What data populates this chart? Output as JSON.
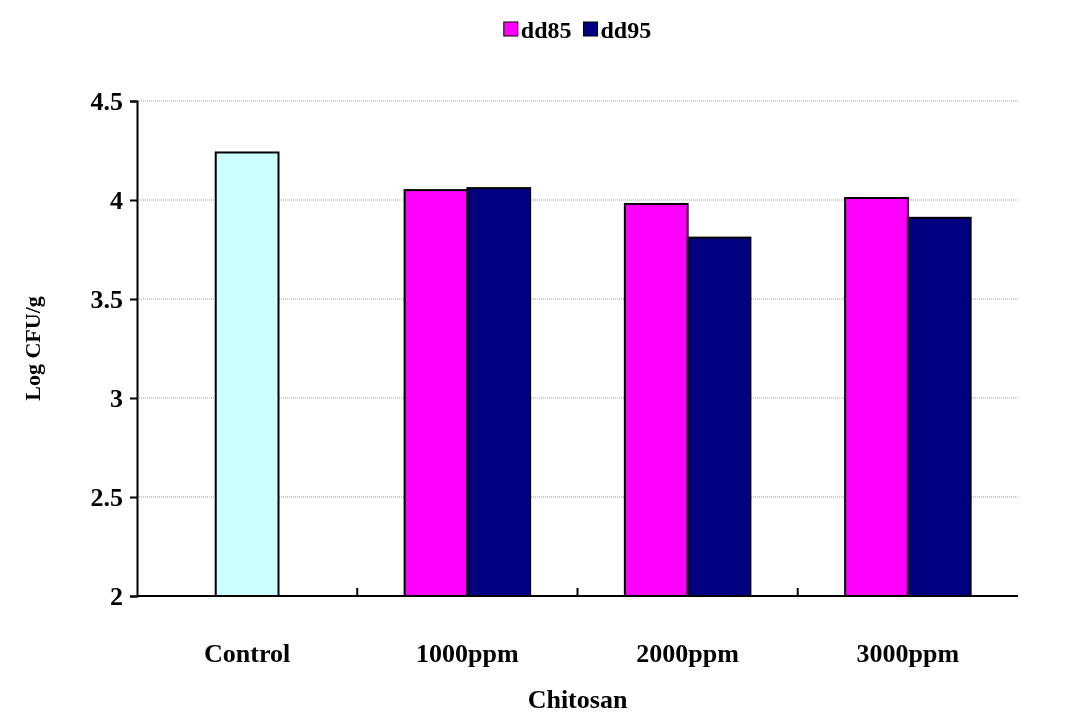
{
  "chart_data": {
    "type": "bar",
    "xlabel": "Chitosan",
    "ylabel": "Log CFU/g",
    "categories": [
      "Control",
      "1000ppm",
      "2000ppm",
      "3000ppm"
    ],
    "series": [
      {
        "color": "#ccffff",
        "values": [
          4.24,
          null,
          null,
          null
        ]
      },
      {
        "name": "dd85",
        "color": "#ff00ff",
        "values": [
          null,
          4.05,
          3.98,
          4.01
        ]
      },
      {
        "name": "dd95",
        "color": "#000080",
        "values": [
          null,
          4.06,
          3.81,
          3.91
        ]
      }
    ],
    "ylim": [
      2,
      4.5
    ],
    "yticks": [
      2,
      2.5,
      3,
      3.5,
      4,
      4.5
    ],
    "grid": "y",
    "legend": "top"
  }
}
